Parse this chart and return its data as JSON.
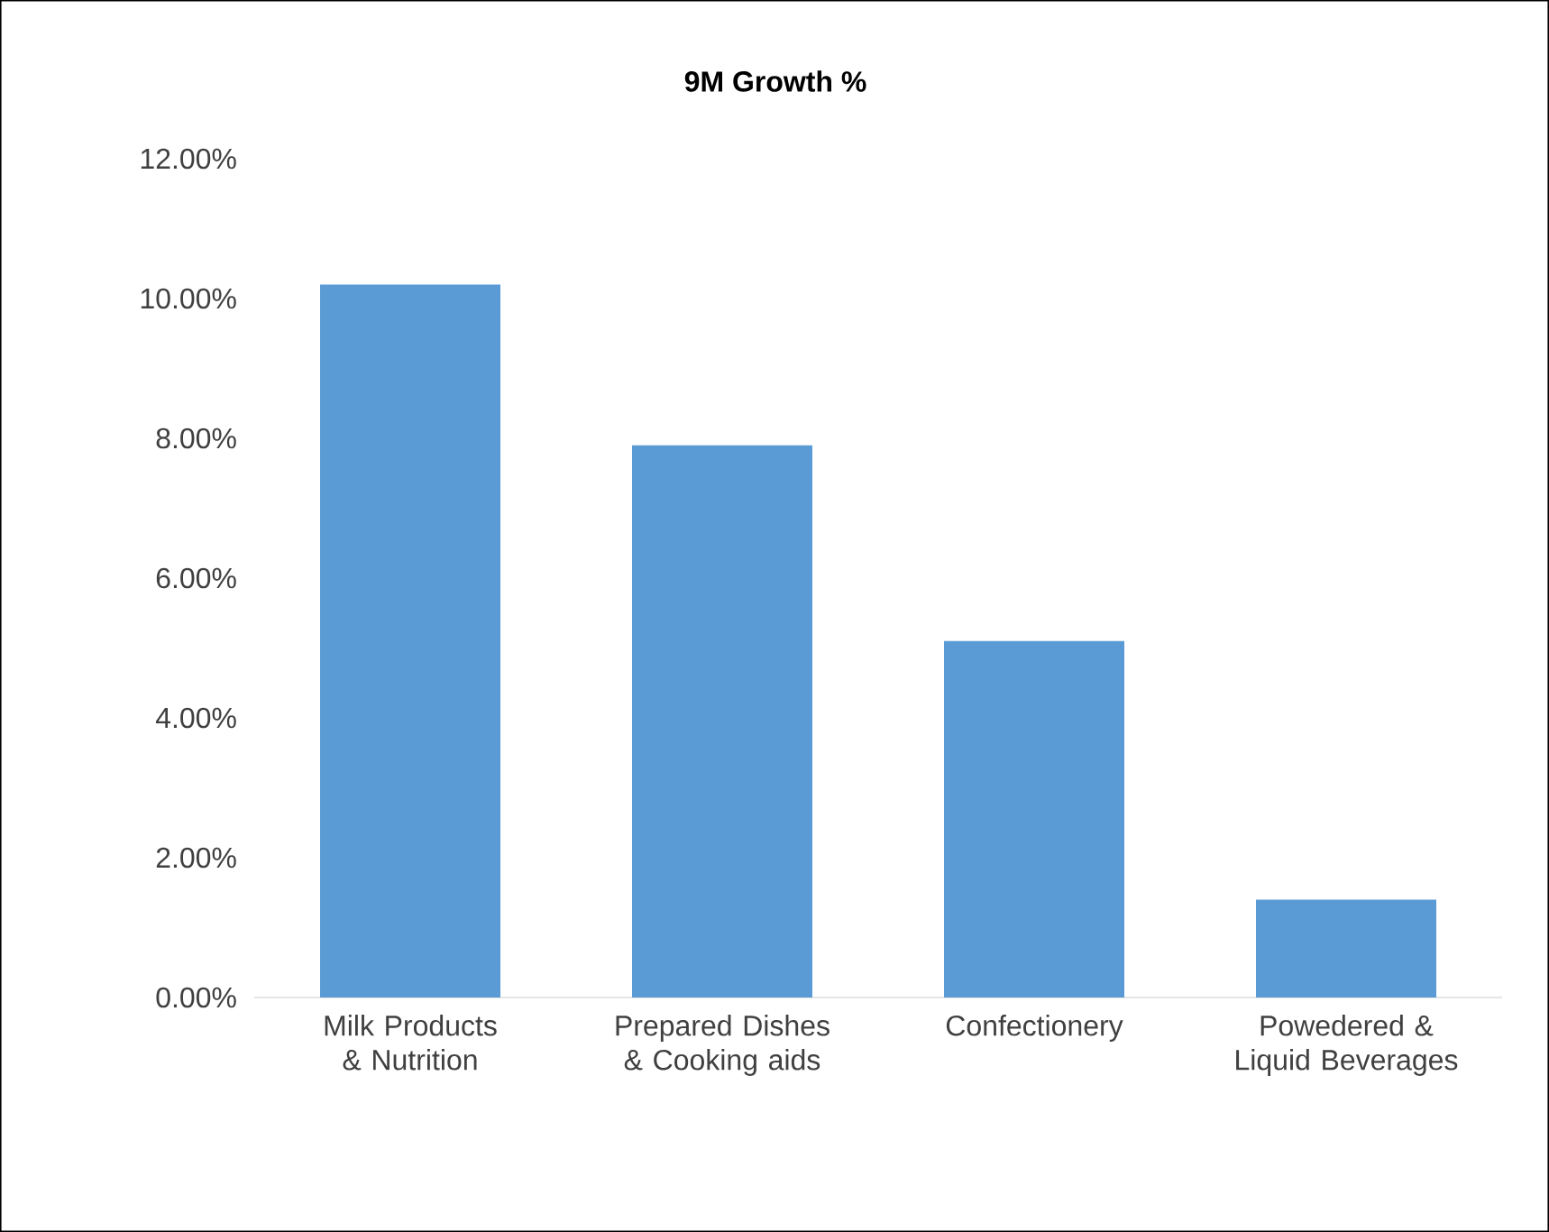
{
  "chart_data": {
    "type": "bar",
    "title": "9M Growth %",
    "categories": [
      "Milk Products & Nutrition",
      "Prepared Dishes & Cooking aids",
      "Confectionery",
      "Powedered & Liquid Beverages"
    ],
    "values": [
      10.2,
      7.9,
      5.1,
      1.4
    ],
    "color": "#5b9bd5",
    "ylim": [
      0,
      12
    ],
    "yticks": [
      {
        "value": 0,
        "label": "0.00%"
      },
      {
        "value": 2,
        "label": "2.00%"
      },
      {
        "value": 4,
        "label": "4.00%"
      },
      {
        "value": 6,
        "label": "6.00%"
      },
      {
        "value": 8,
        "label": "8.00%"
      },
      {
        "value": 10,
        "label": "10.00%"
      },
      {
        "value": 12,
        "label": "12.00%"
      }
    ],
    "grid": false
  }
}
